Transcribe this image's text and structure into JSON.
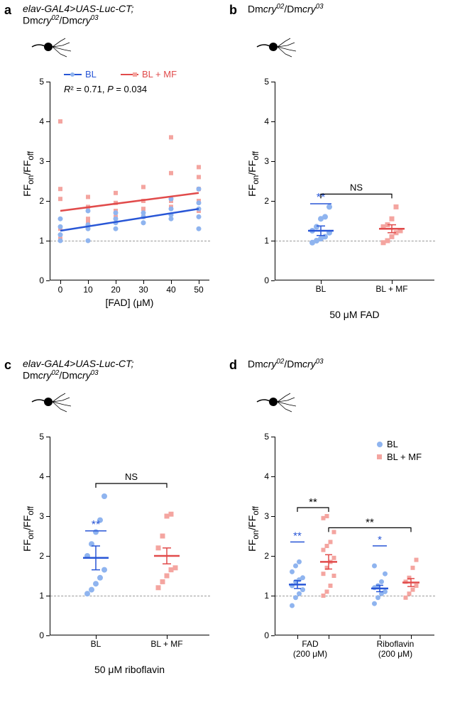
{
  "panels": {
    "a": {
      "label": "a",
      "title_parts": [
        "elav-GAL4>UAS-Luc-CT;",
        "Dm",
        "cry",
        "02",
        "/Dm",
        "cry",
        "03"
      ],
      "stats": "R² = 0.71, P = 0.034",
      "legend_bl": "BL",
      "legend_mf": "BL + MF",
      "ylabel": "FFₒₙ/FF_off",
      "xlabel": "[FAD] (μM)",
      "ylim": [
        0,
        5
      ],
      "ytick_step": 1,
      "xlim": [
        0,
        50
      ],
      "xtick_step": 10,
      "bl_color": "#2856d6",
      "mf_color": "#e14b4b",
      "bl_light": "#8fb4ef",
      "mf_light": "#f4a5a0",
      "bl_line": [
        [
          0,
          1.25
        ],
        [
          50,
          1.8
        ]
      ],
      "mf_line": [
        [
          0,
          1.75
        ],
        [
          50,
          2.2
        ]
      ],
      "bl_points": [
        [
          0,
          1.0
        ],
        [
          0,
          1.15
        ],
        [
          0,
          1.55
        ],
        [
          0,
          1.35
        ],
        [
          10,
          1.0
        ],
        [
          10,
          1.3
        ],
        [
          10,
          1.4
        ],
        [
          10,
          1.75
        ],
        [
          20,
          1.3
        ],
        [
          20,
          1.45
        ],
        [
          20,
          1.55
        ],
        [
          20,
          1.7
        ],
        [
          30,
          1.7
        ],
        [
          30,
          1.6
        ],
        [
          30,
          1.45
        ],
        [
          30,
          1.45
        ],
        [
          40,
          1.55
        ],
        [
          40,
          1.65
        ],
        [
          40,
          1.8
        ],
        [
          40,
          2.05
        ],
        [
          50,
          1.3
        ],
        [
          50,
          1.6
        ],
        [
          50,
          1.8
        ],
        [
          50,
          1.95
        ],
        [
          50,
          2.3
        ]
      ],
      "mf_points": [
        [
          0,
          1.05
        ],
        [
          0,
          1.3
        ],
        [
          0,
          2.05
        ],
        [
          0,
          2.3
        ],
        [
          0,
          4.0
        ],
        [
          10,
          1.45
        ],
        [
          10,
          1.55
        ],
        [
          10,
          1.85
        ],
        [
          10,
          2.1
        ],
        [
          20,
          1.6
        ],
        [
          20,
          1.75
        ],
        [
          20,
          1.95
        ],
        [
          20,
          2.2
        ],
        [
          30,
          1.6
        ],
        [
          30,
          1.8
        ],
        [
          30,
          2.0
        ],
        [
          30,
          2.35
        ],
        [
          40,
          1.85
        ],
        [
          40,
          2.0
        ],
        [
          40,
          2.7
        ],
        [
          40,
          3.6
        ],
        [
          50,
          1.75
        ],
        [
          50,
          2.0
        ],
        [
          50,
          2.3
        ],
        [
          50,
          2.6
        ],
        [
          50,
          2.85
        ]
      ]
    },
    "b": {
      "label": "b",
      "title_parts": [
        "Dm",
        "cry",
        "02",
        "/Dm",
        "cry",
        "03"
      ],
      "ylabel": "FFₒₙ/FF_off",
      "xlabel": "50 μM FAD",
      "xcats": [
        "BL",
        "BL + MF"
      ],
      "ylim": [
        0,
        5
      ],
      "ytick_step": 1,
      "bl_color": "#2856d6",
      "mf_color": "#e14b4b",
      "bl_light": "#8fb4ef",
      "mf_light": "#f4a5a0",
      "bl_mean": 1.25,
      "bl_se": 0.12,
      "mf_mean": 1.3,
      "mf_se": 0.1,
      "bl_points": [
        0.95,
        1.0,
        1.05,
        1.1,
        1.2,
        1.25,
        1.35,
        1.55,
        1.6,
        1.85
      ],
      "mf_points": [
        0.95,
        1.0,
        1.1,
        1.2,
        1.25,
        1.35,
        1.4,
        1.55,
        1.85
      ],
      "sig_bl": "**",
      "ns": "NS"
    },
    "c": {
      "label": "c",
      "title_parts": [
        "elav-GAL4>UAS-Luc-CT;",
        "Dm",
        "cry",
        "02",
        "/Dm",
        "cry",
        "03"
      ],
      "ylabel": "FFₒₙ/FF_off",
      "xlabel": "50 μM riboflavin",
      "xcats": [
        "BL",
        "BL + MF"
      ],
      "ylim": [
        0,
        5
      ],
      "ytick_step": 1,
      "bl_color": "#2856d6",
      "mf_color": "#e14b4b",
      "bl_light": "#8fb4ef",
      "mf_light": "#f4a5a0",
      "bl_mean": 1.95,
      "bl_se": 0.3,
      "mf_mean": 2.0,
      "mf_se": 0.2,
      "bl_points": [
        1.05,
        1.15,
        1.3,
        1.45,
        1.65,
        2.0,
        2.3,
        2.6,
        2.9,
        3.5
      ],
      "mf_points": [
        1.2,
        1.35,
        1.5,
        1.65,
        1.7,
        2.2,
        2.5,
        3.0,
        3.05
      ],
      "sig_bl": "**",
      "ns": "NS"
    },
    "d": {
      "label": "d",
      "title_parts": [
        "Dm",
        "cry",
        "02",
        "/Dm",
        "cry",
        "03"
      ],
      "ylabel": "FFₒₙ/FF_off",
      "xlabel_fad": "FAD\n(200 μM)",
      "xlabel_ribo": "Riboflavin\n(200 μM)",
      "ylim": [
        0,
        5
      ],
      "ytick_step": 1,
      "bl_color": "#2856d6",
      "mf_color": "#e14b4b",
      "bl_light": "#8fb4ef",
      "mf_light": "#f4a5a0",
      "legend_bl": "BL",
      "legend_mf": "BL + MF",
      "fad_bl_mean": 1.28,
      "fad_bl_se": 0.1,
      "fad_mf_mean": 1.85,
      "fad_mf_se": 0.18,
      "ribo_bl_mean": 1.18,
      "ribo_bl_se": 0.08,
      "ribo_mf_mean": 1.33,
      "ribo_mf_se": 0.1,
      "fad_bl_points": [
        0.75,
        0.95,
        1.05,
        1.15,
        1.25,
        1.35,
        1.4,
        1.45,
        1.6,
        1.75,
        1.85
      ],
      "fad_mf_points": [
        1.0,
        1.1,
        1.25,
        1.5,
        1.55,
        1.7,
        1.85,
        1.95,
        2.15,
        2.25,
        2.35,
        2.6,
        2.95,
        3.0
      ],
      "ribo_bl_points": [
        0.8,
        0.95,
        1.05,
        1.1,
        1.2,
        1.25,
        1.35,
        1.55,
        1.75
      ],
      "ribo_mf_points": [
        0.95,
        1.05,
        1.15,
        1.25,
        1.35,
        1.45,
        1.7,
        1.9
      ],
      "sig_fad_bl": "**",
      "sig_ribo_bl": "*",
      "sig_fad_pair": "**",
      "sig_mf_pair": "**"
    }
  }
}
